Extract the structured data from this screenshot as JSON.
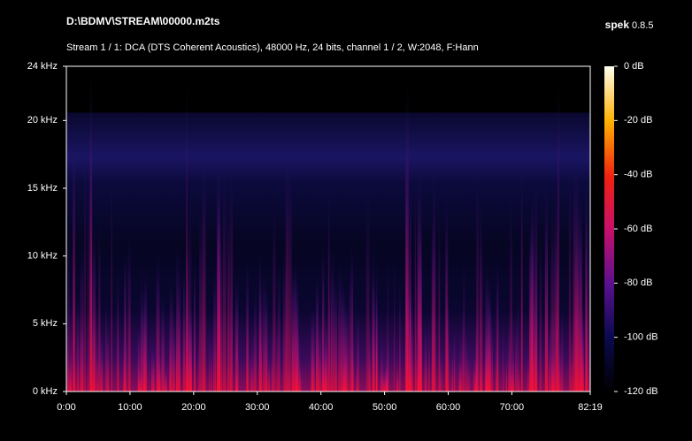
{
  "chart_data": {
    "type": "spectrogram",
    "title": "D:\\BDMV\\STREAM\\00000.m2ts",
    "subtitle": "Stream 1 / 1: DCA (DTS Coherent Acoustics), 48000 Hz, 24 bits, channel 1 / 2, W:2048, F:Hann",
    "app_name": "spek",
    "app_version": "0.8.5",
    "xlim": [
      0,
      82.3167
    ],
    "xticks": [
      {
        "value": 0,
        "label": "0:00"
      },
      {
        "value": 10,
        "label": "10:00"
      },
      {
        "value": 20,
        "label": "20:00"
      },
      {
        "value": 30,
        "label": "30:00"
      },
      {
        "value": 40,
        "label": "40:00"
      },
      {
        "value": 50,
        "label": "50:00"
      },
      {
        "value": 60,
        "label": "60:00"
      },
      {
        "value": 70,
        "label": "70:00"
      },
      {
        "value": 82.3167,
        "label": "82:19"
      }
    ],
    "ylim": [
      0,
      24
    ],
    "yticks": [
      {
        "value": 0,
        "label": "0 kHz"
      },
      {
        "value": 5,
        "label": "5 kHz"
      },
      {
        "value": 10,
        "label": "10 kHz"
      },
      {
        "value": 15,
        "label": "15 kHz"
      },
      {
        "value": 20,
        "label": "20 kHz"
      },
      {
        "value": 24,
        "label": "24 kHz"
      }
    ],
    "zlim": [
      -120,
      0
    ],
    "zticks": [
      {
        "value": 0,
        "label": "0 dB"
      },
      {
        "value": -20,
        "label": "-20 dB"
      },
      {
        "value": -40,
        "label": "-40 dB"
      },
      {
        "value": -60,
        "label": "-60 dB"
      },
      {
        "value": -80,
        "label": "-80 dB"
      },
      {
        "value": -100,
        "label": "-100 dB"
      },
      {
        "value": -120,
        "label": "-120 dB"
      }
    ]
  }
}
